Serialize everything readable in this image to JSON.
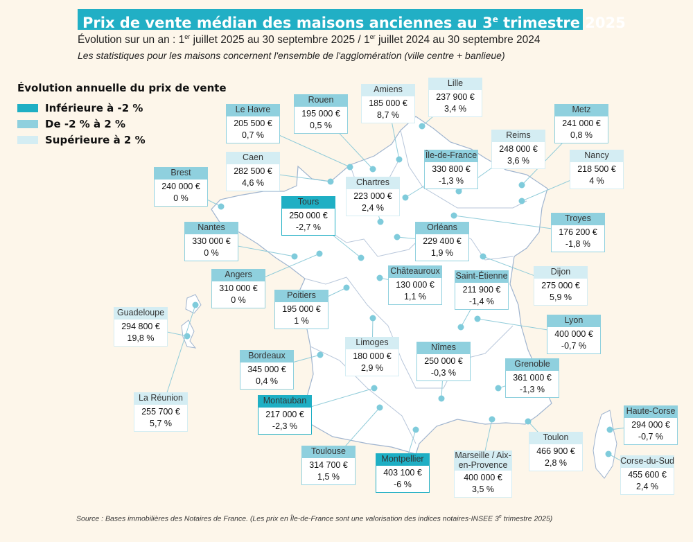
{
  "header": {
    "title": "Prix de vente médian des maisons anciennes au 3",
    "title_sup": "e",
    "title_end": " trimestre 2025",
    "subtitle_a": "Évolution sur un an : 1",
    "subtitle_sup1": "er",
    "subtitle_b": " juillet 2025 au 30 septembre 2025 / 1",
    "subtitle_sup2": "er",
    "subtitle_c": " juillet 2024 au 30 septembre 2024",
    "note": "Les statistiques pour les maisons concernent l'ensemble de l'agglomération (ville centre + banlieue)"
  },
  "legend": {
    "title": "Évolution annuelle du prix de vente",
    "items": [
      {
        "label": "Inférieure à -2 %",
        "color": "#1fafc4"
      },
      {
        "label": "De -2 % à 2 %",
        "color": "#8fd0de"
      },
      {
        "label": "Supérieure à 2 %",
        "color": "#d4edf3"
      }
    ]
  },
  "colors": {
    "background": "#fdf6ea",
    "title_bg": "#21afc5",
    "map_fill": "#ffffff",
    "map_border": "#9fb4cf",
    "dot": "#7fcbdb"
  },
  "cities": [
    {
      "name": "Le Havre",
      "price": "205 500 €",
      "change": "0,7 %",
      "category": 1
    },
    {
      "name": "Rouen",
      "price": "195 000 €",
      "change": "0,5 %",
      "category": 1
    },
    {
      "name": "Amiens",
      "price": "185 000 €",
      "change": "8,7 %",
      "category": 2
    },
    {
      "name": "Lille",
      "price": "237 900 €",
      "change": "3,4 %",
      "category": 2
    },
    {
      "name": "Metz",
      "price": "241 000 €",
      "change": "0,8 %",
      "category": 1
    },
    {
      "name": "Reims",
      "price": "248 000 €",
      "change": "3,6 %",
      "category": 2
    },
    {
      "name": "Nancy",
      "price": "218 500 €",
      "change": "4 %",
      "category": 2
    },
    {
      "name": "Caen",
      "price": "282 500 €",
      "change": "4,6 %",
      "category": 2
    },
    {
      "name": "Île-de-France",
      "price": "330 800 €",
      "change": "-1,3 %",
      "category": 1
    },
    {
      "name": "Chartres",
      "price": "223 000 €",
      "change": "2,4 %",
      "category": 2
    },
    {
      "name": "Brest",
      "price": "240 000 €",
      "change": "0 %",
      "category": 1
    },
    {
      "name": "Tours",
      "price": "250 000 €",
      "change": "-2,7 %",
      "category": 0
    },
    {
      "name": "Troyes",
      "price": "176 200 €",
      "change": "-1,8 %",
      "category": 1
    },
    {
      "name": "Nantes",
      "price": "330 000 €",
      "change": "0 %",
      "category": 1
    },
    {
      "name": "Orléans",
      "price": "229 400 €",
      "change": "1,9 %",
      "category": 1
    },
    {
      "name": "Angers",
      "price": "310 000 €",
      "change": "0 %",
      "category": 1
    },
    {
      "name": "Châteauroux",
      "price": "130 000 €",
      "change": "1,1 %",
      "category": 1
    },
    {
      "name": "Saint-Étienne",
      "price": "211 900 €",
      "change": "-1,4 %",
      "category": 1
    },
    {
      "name": "Dijon",
      "price": "275 000 €",
      "change": "5,9 %",
      "category": 2
    },
    {
      "name": "Poitiers",
      "price": "195 000 €",
      "change": "1 %",
      "category": 1
    },
    {
      "name": "Guadeloupe",
      "price": "294 800 €",
      "change": "19,8 %",
      "category": 2
    },
    {
      "name": "Lyon",
      "price": "400 000 €",
      "change": "-0,7 %",
      "category": 1
    },
    {
      "name": "Limoges",
      "price": "180 000 €",
      "change": "2,9 %",
      "category": 2
    },
    {
      "name": "Nîmes",
      "price": "250 000 €",
      "change": "-0,3 %",
      "category": 1
    },
    {
      "name": "Bordeaux",
      "price": "345 000 €",
      "change": "0,4 %",
      "category": 1
    },
    {
      "name": "Grenoble",
      "price": "361 000 €",
      "change": "-1,3 %",
      "category": 1
    },
    {
      "name": "La Réunion",
      "price": "255 700 €",
      "change": "5,7 %",
      "category": 2
    },
    {
      "name": "Montauban",
      "price": "217 000 €",
      "change": "-2,3 %",
      "category": 0
    },
    {
      "name": "Haute-Corse",
      "price": "294 000 €",
      "change": "-0,7 %",
      "category": 1
    },
    {
      "name": "Toulon",
      "price": "466 900 €",
      "change": "2,8 %",
      "category": 2
    },
    {
      "name": "Toulouse",
      "price": "314 700 €",
      "change": "1,5 %",
      "category": 1
    },
    {
      "name": "Montpellier",
      "price": "403 100 €",
      "change": "-6 %",
      "category": 0
    },
    {
      "name": "Marseille / Aix-en-Provence",
      "price": "400 000 €",
      "change": "3,5 %",
      "category": 2
    },
    {
      "name": "Corse-du-Sud",
      "price": "455 600 €",
      "change": "2,4 %",
      "category": 2
    }
  ],
  "footer": {
    "source_a": "Source : Bases immobilières des Notaires de France. (Les prix en Île-de-France sont une valorisation des indices notaires-INSEE 3",
    "source_sup": "e",
    "source_b": " trimestre 2025)"
  }
}
